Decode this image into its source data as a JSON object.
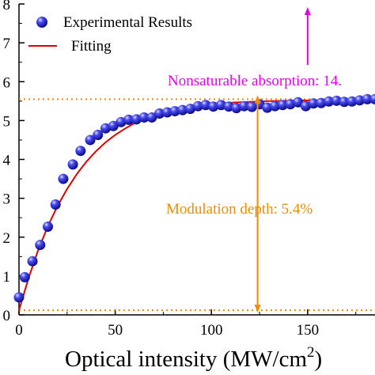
{
  "chart_data": {
    "type": "scatter",
    "xlabel_main": "Optical intensity (MW/cm",
    "xlabel_sup": "2",
    "xlabel_end": ")",
    "xlim": [
      0,
      185
    ],
    "ylim": [
      0,
      8
    ],
    "xticks": [
      0,
      50,
      100,
      150
    ],
    "yticks": [
      0,
      1,
      2,
      3,
      4,
      5,
      6,
      7,
      8
    ],
    "legend": {
      "position": "top-left",
      "experimental": "Experimental Results",
      "fitting": "Fitting"
    },
    "series": [
      {
        "name": "Experimental Results",
        "kind": "points",
        "color": "#2222dd",
        "x": [
          0,
          3,
          7,
          11,
          15,
          19,
          23,
          28,
          32,
          37,
          41,
          45,
          49,
          53,
          57,
          61,
          65,
          69,
          73,
          77,
          81,
          85,
          89,
          93,
          97,
          101,
          105,
          109,
          113,
          117,
          121,
          125,
          129,
          133,
          137,
          141,
          145,
          149,
          153,
          157,
          161,
          165,
          169,
          173,
          177,
          181,
          185
        ],
        "y": [
          0.45,
          0.97,
          1.38,
          1.8,
          2.27,
          2.84,
          3.5,
          3.87,
          4.22,
          4.5,
          4.63,
          4.8,
          4.86,
          4.96,
          5.02,
          5.03,
          5.08,
          5.08,
          5.18,
          5.21,
          5.24,
          5.27,
          5.3,
          5.37,
          5.4,
          5.36,
          5.4,
          5.36,
          5.32,
          5.37,
          5.35,
          5.42,
          5.33,
          5.37,
          5.4,
          5.42,
          5.47,
          5.37,
          5.44,
          5.45,
          5.49,
          5.51,
          5.48,
          5.49,
          5.52,
          5.55,
          5.55
        ]
      },
      {
        "name": "Fitting",
        "kind": "line",
        "color": "#e00000",
        "x": [
          0,
          5,
          10,
          15,
          20,
          25,
          30,
          35,
          40,
          45,
          50,
          55,
          60,
          65,
          70,
          75,
          80,
          90,
          100,
          110,
          120,
          130,
          140,
          150,
          160,
          170,
          185
        ],
        "y": [
          0.12,
          0.95,
          1.67,
          2.28,
          2.8,
          3.24,
          3.62,
          3.94,
          4.21,
          4.44,
          4.63,
          4.79,
          4.93,
          5.04,
          5.14,
          5.22,
          5.28,
          5.37,
          5.43,
          5.46,
          5.48,
          5.5,
          5.51,
          5.52,
          5.52,
          5.53,
          5.53
        ]
      }
    ],
    "reference_lines": [
      {
        "axis": "y",
        "value": 5.55,
        "color": "#f08c00",
        "style": "dotted"
      },
      {
        "axis": "y",
        "value": 0.12,
        "color": "#f08c00",
        "style": "dotted"
      }
    ],
    "annotations": {
      "nonsaturable": {
        "text": "Nonsaturable absorption: 14.",
        "color": "#e600e6",
        "arrow_x": 150
      },
      "modulation": {
        "text": "Modulation depth: 5.4%",
        "color": "#f08c00",
        "arrow_x": 124
      }
    }
  }
}
